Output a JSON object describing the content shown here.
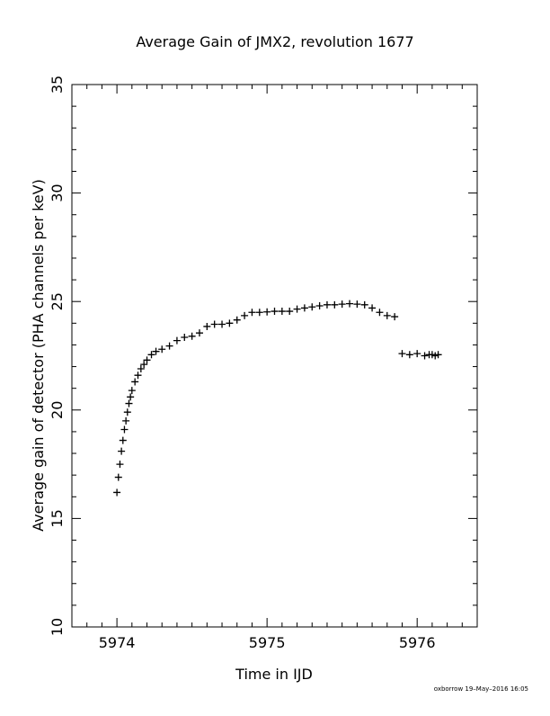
{
  "chart_data": {
    "type": "scatter",
    "title": "Average Gain of JMX2, revolution 1677",
    "xlabel": "Time in IJD",
    "ylabel": "Average gain of detector (PHA channels per keV)",
    "xlim": [
      5973.7,
      5976.4
    ],
    "ylim": [
      10,
      35
    ],
    "xticks": [
      5974,
      5975,
      5976
    ],
    "yticks": [
      10,
      15,
      20,
      25,
      30,
      35
    ],
    "x_minor_step": 0.1,
    "y_minor_step": 1,
    "grid": false,
    "legend": "none",
    "marker": "plus",
    "color": "#000000",
    "series": [
      {
        "x": [
          5974.0,
          5974.01,
          5974.02,
          5974.03,
          5974.04,
          5974.05,
          5974.06,
          5974.07,
          5974.08,
          5974.09,
          5974.1,
          5974.12,
          5974.14,
          5974.16,
          5974.18,
          5974.2,
          5974.23,
          5974.26,
          5974.3,
          5974.35,
          5974.4,
          5974.45,
          5974.5,
          5974.55,
          5974.6,
          5974.65,
          5974.7,
          5974.75,
          5974.8,
          5974.85,
          5974.9,
          5974.95,
          5975.0,
          5975.05,
          5975.1,
          5975.15,
          5975.2,
          5975.25,
          5975.3,
          5975.35,
          5975.4,
          5975.45,
          5975.5,
          5975.55,
          5975.6,
          5975.65,
          5975.7,
          5975.75,
          5975.8,
          5975.85,
          5975.9,
          5975.95,
          5976.0,
          5976.05,
          5976.08,
          5976.1,
          5976.12,
          5976.14
        ],
        "y": [
          16.2,
          16.9,
          17.5,
          18.1,
          18.6,
          19.1,
          19.5,
          19.9,
          20.3,
          20.6,
          20.9,
          21.3,
          21.6,
          21.9,
          22.1,
          22.3,
          22.55,
          22.7,
          22.8,
          22.95,
          23.2,
          23.35,
          23.4,
          23.55,
          23.85,
          23.95,
          23.95,
          24.0,
          24.15,
          24.35,
          24.5,
          24.5,
          24.52,
          24.55,
          24.55,
          24.55,
          24.65,
          24.7,
          24.75,
          24.8,
          24.85,
          24.85,
          24.88,
          24.9,
          24.88,
          24.85,
          24.7,
          24.5,
          24.35,
          24.3,
          22.6,
          22.55,
          22.6,
          22.5,
          22.55,
          22.55,
          22.5,
          22.55
        ]
      }
    ],
    "footer": "oxborrow 19–May–2016 16:05"
  }
}
